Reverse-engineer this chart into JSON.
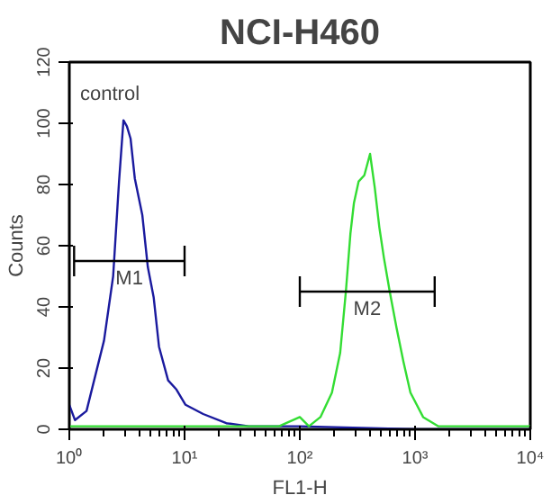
{
  "chart_data": {
    "type": "line",
    "title": "NCI-H460",
    "xlabel": "FL1-H",
    "ylabel": "Counts",
    "log": "x",
    "xlim": [
      1,
      10000
    ],
    "ylim": [
      0,
      120
    ],
    "xticks": [
      {
        "value": 1,
        "label": "10⁰"
      },
      {
        "value": 10,
        "label": "10¹"
      },
      {
        "value": 100,
        "label": "10²"
      },
      {
        "value": 1000,
        "label": "10³"
      },
      {
        "value": 10000,
        "label": "10⁴"
      }
    ],
    "yticks": [
      0,
      20,
      40,
      60,
      80,
      100,
      120
    ],
    "marker": "none",
    "line_style": "solid",
    "series": [
      {
        "color": "#1a1a9e",
        "x": [
          1,
          1.12,
          1.41,
          2.0,
          2.4,
          2.7,
          2.95,
          3.16,
          3.4,
          3.7,
          4.3,
          4.8,
          5.4,
          6.0,
          7.2,
          8.5,
          10.2,
          14.5,
          23,
          36,
          100,
          1000,
          10000
        ],
        "values": [
          8,
          3,
          6,
          29,
          50,
          81,
          101,
          99,
          95,
          82,
          70,
          53,
          43,
          27,
          16,
          13,
          8,
          5,
          2,
          1,
          1,
          0,
          0
        ]
      },
      {
        "color": "#33dd33",
        "x": [
          1,
          10,
          66,
          100,
          120,
          151,
          190,
          224,
          251,
          275,
          295,
          324,
          363,
          407,
          447,
          490,
          537,
          603,
          692,
          794,
          912,
          1175,
          1585,
          10000
        ],
        "values": [
          1,
          1,
          1,
          4,
          1,
          4,
          12,
          25,
          45,
          64,
          74,
          81,
          83,
          90,
          79,
          66,
          56,
          45,
          33,
          22,
          12,
          4,
          1,
          1
        ]
      },
      {
        "name": "M1",
        "color": "#000000",
        "x": [
          1.1,
          10
        ],
        "values": [
          55,
          55
        ],
        "errors": [
          5,
          5
        ]
      },
      {
        "name": "M2",
        "color": "#000000",
        "x": [
          100,
          1480
        ],
        "values": [
          45,
          45
        ],
        "errors": [
          5,
          5
        ]
      }
    ],
    "annotations": [
      "control"
    ]
  }
}
